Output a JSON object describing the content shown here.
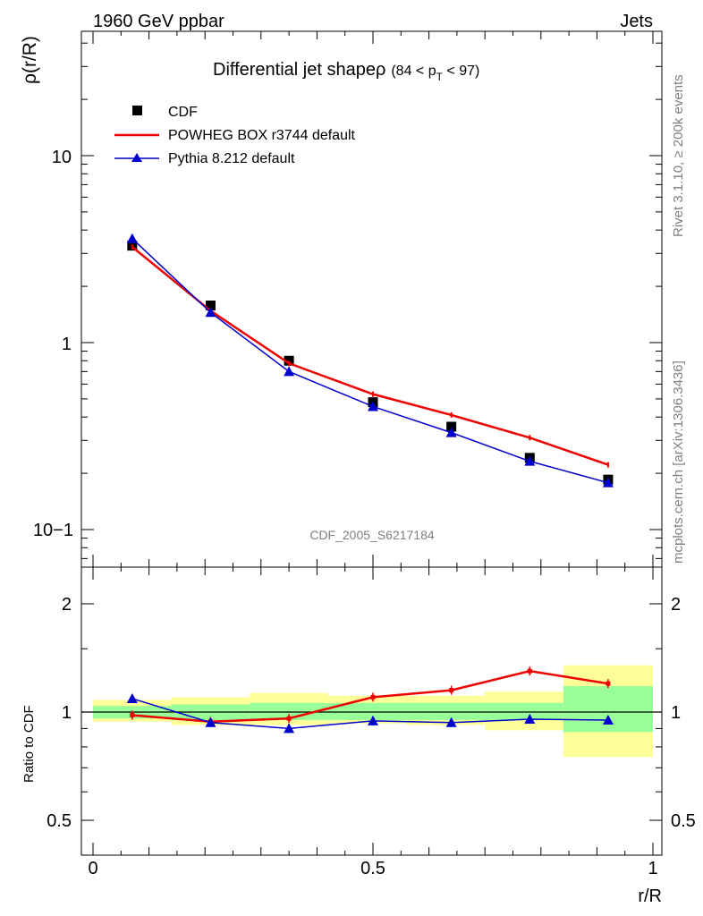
{
  "header": {
    "left": "1960 GeV ppbar",
    "right": "Jets"
  },
  "side_labels": {
    "rivet": "Rivet 3.1.10, ≥ 200k events",
    "mcplots": "mcplots.cern.ch [arXiv:1306.3436]"
  },
  "plot": {
    "title_main": "Differential jet shapeρ",
    "title_cut": "(84 < p",
    "title_sub": "T",
    "title_end": " < 97)",
    "analysis_id": "CDF_2005_S6217184",
    "ylabel": "ρ(r/R)",
    "ratio_ylabel": "Ratio to CDF",
    "xlabel": "r/R"
  },
  "chart_data": [
    {
      "type": "line",
      "panel": "main",
      "xlabel": "r/R",
      "ylabel": "ρ(r/R)",
      "xlim": [
        -0.02,
        1.04
      ],
      "ylim": [
        0.065,
        38
      ],
      "log_y": true,
      "x_ticks": [
        "0",
        "0.5",
        "1"
      ],
      "y_ticks": [
        "10−1",
        "1",
        "10"
      ],
      "x": [
        0.07,
        0.21,
        0.35,
        0.5,
        0.64,
        0.78,
        0.92
      ],
      "series": [
        {
          "name": "CDF",
          "marker": "square",
          "color": "#000000",
          "values": [
            3.3,
            1.58,
            0.8,
            0.48,
            0.355,
            0.242,
            0.185
          ]
        },
        {
          "name": "POWHEG BOX r3744 default",
          "marker": "none",
          "color": "#ee0000",
          "values": [
            3.25,
            1.48,
            0.775,
            0.53,
            0.41,
            0.31,
            0.222
          ]
        },
        {
          "name": "Pythia 8.212 default",
          "marker": "triangle",
          "color": "#0000cc",
          "values": [
            3.6,
            1.45,
            0.7,
            0.455,
            0.33,
            0.232,
            0.178
          ]
        }
      ],
      "legend": "top-left"
    },
    {
      "type": "line",
      "panel": "ratio",
      "ylabel": "Ratio to CDF",
      "xlabel": "r/R",
      "xlim": [
        -0.02,
        1.04
      ],
      "ylim": [
        0.4,
        2.45
      ],
      "log_y": true,
      "x_ticks": [
        "0",
        "0.5",
        "1"
      ],
      "y_ticks": [
        "0.5",
        "1",
        "2"
      ],
      "x": [
        0.07,
        0.21,
        0.35,
        0.5,
        0.64,
        0.78,
        0.92
      ],
      "series": [
        {
          "name": "POWHEG BOX r3744 default",
          "color": "#ee0000",
          "values": [
            0.98,
            0.94,
            0.96,
            1.1,
            1.15,
            1.3,
            1.2
          ]
        },
        {
          "name": "Pythia 8.212 default",
          "color": "#0000cc",
          "values": [
            1.09,
            0.935,
            0.9,
            0.945,
            0.935,
            0.955,
            0.95
          ]
        }
      ],
      "bands": {
        "bin_edges": [
          0,
          0.14,
          0.28,
          0.42,
          0.56,
          0.7,
          0.84,
          1.0
        ],
        "stat_low": [
          0.96,
          0.95,
          0.95,
          0.95,
          0.95,
          0.95,
          0.88
        ],
        "stat_high": [
          1.04,
          1.05,
          1.06,
          1.06,
          1.06,
          1.06,
          1.18
        ],
        "tot_low": [
          0.94,
          0.92,
          0.92,
          0.93,
          0.92,
          0.89,
          0.75
        ],
        "tot_high": [
          1.08,
          1.1,
          1.13,
          1.11,
          1.11,
          1.14,
          1.35
        ],
        "stat_color": "#99ff99",
        "total_color": "#ffff99"
      }
    }
  ]
}
